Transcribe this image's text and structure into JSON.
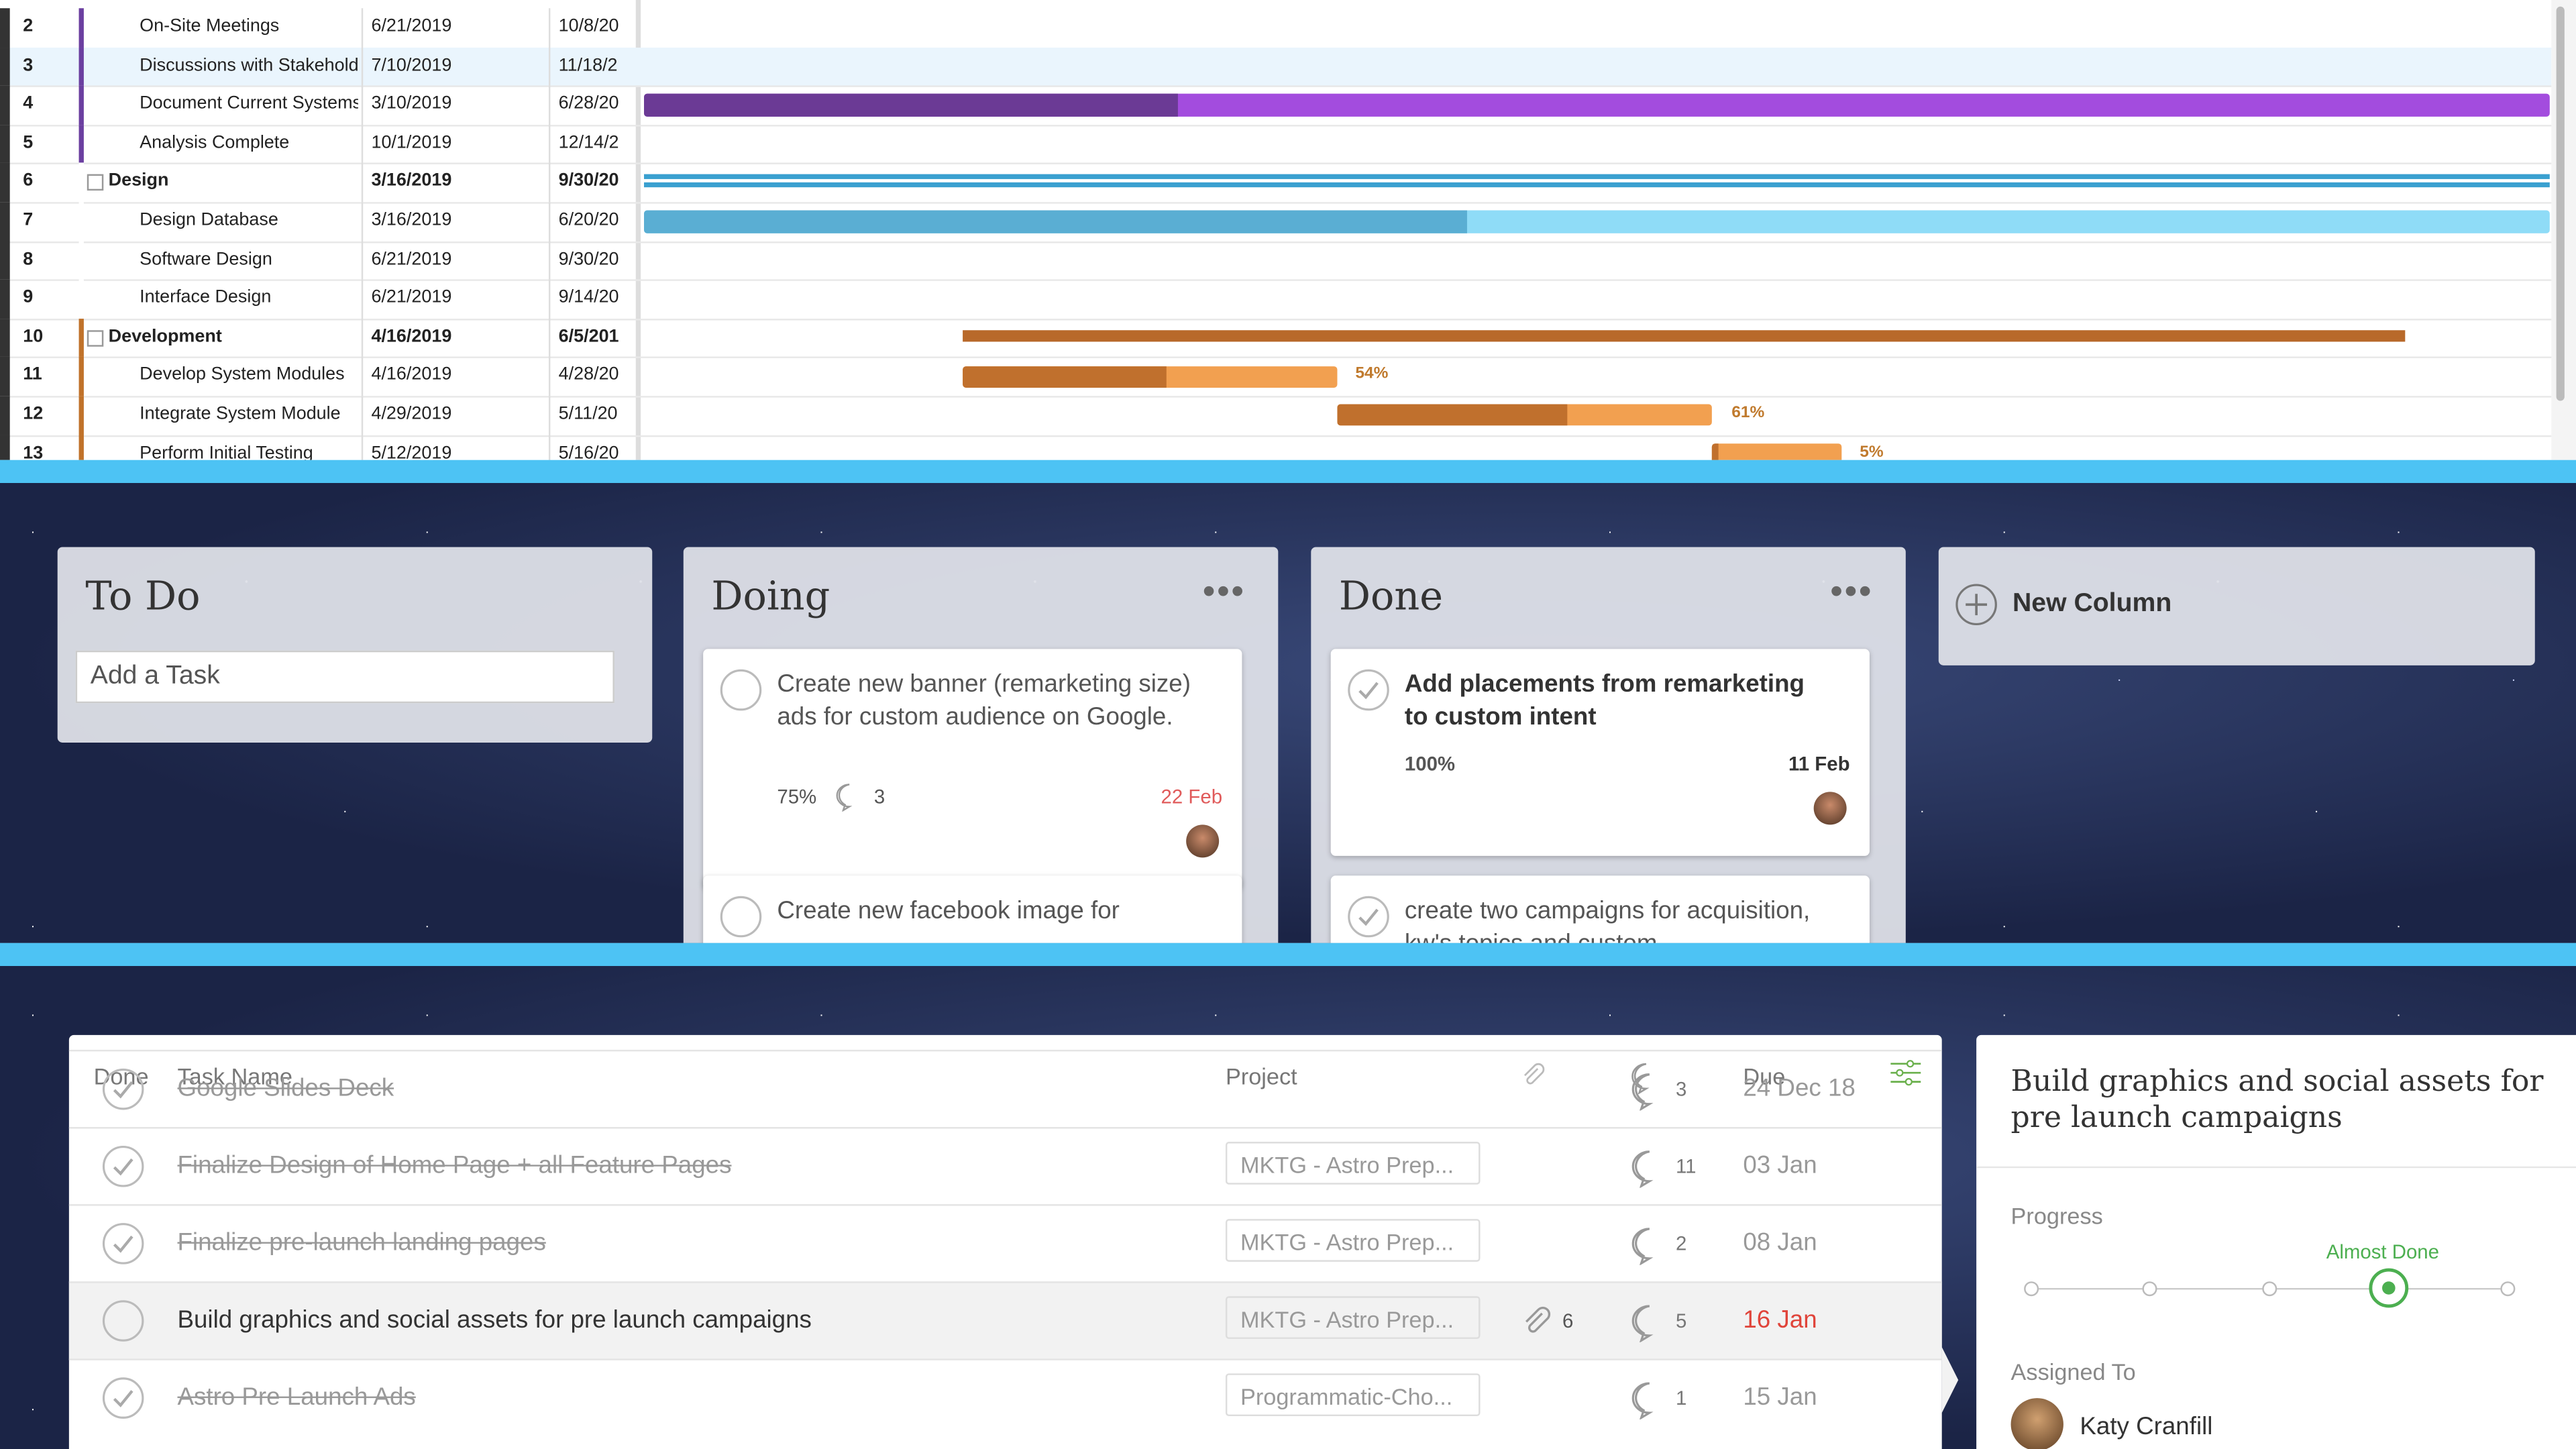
{
  "gantt": {
    "rows": [
      {
        "id": 2,
        "name": "On-Site Meetings",
        "start": "6/21/2019",
        "end": "10/8/20",
        "bold": false,
        "color": "#6b3fa0"
      },
      {
        "id": 3,
        "name": "Discussions with Stakeholders",
        "start": "7/10/2019",
        "end": "11/18/2",
        "bold": false,
        "color": "#6b3fa0"
      },
      {
        "id": 4,
        "name": "Document Current Systems",
        "start": "3/10/2019",
        "end": "6/28/20",
        "bold": false,
        "color": "#6b3fa0"
      },
      {
        "id": 5,
        "name": "Analysis Complete",
        "start": "10/1/2019",
        "end": "12/14/2",
        "bold": false,
        "color": "#6b3fa0"
      },
      {
        "id": 6,
        "name": "Design",
        "start": "3/16/2019",
        "end": "9/30/20",
        "bold": true,
        "color": "#ffffff"
      },
      {
        "id": 7,
        "name": "Design Database",
        "start": "3/16/2019",
        "end": "6/20/20",
        "bold": false,
        "color": "#ffffff"
      },
      {
        "id": 8,
        "name": "Software Design",
        "start": "6/21/2019",
        "end": "9/30/20",
        "bold": false,
        "color": "#ffffff"
      },
      {
        "id": 9,
        "name": "Interface Design",
        "start": "6/21/2019",
        "end": "9/14/20",
        "bold": false,
        "color": "#ffffff"
      },
      {
        "id": 10,
        "name": "Development",
        "start": "4/16/2019",
        "end": "6/5/201",
        "bold": true,
        "color": "#c0722a"
      },
      {
        "id": 11,
        "name": "Develop System Modules",
        "start": "4/16/2019",
        "end": "4/28/20",
        "bold": false,
        "color": "#c0722a"
      },
      {
        "id": 12,
        "name": "Integrate System Module",
        "start": "4/29/2019",
        "end": "5/11/20",
        "bold": false,
        "color": "#c0722a"
      },
      {
        "id": 13,
        "name": "Perform Initial Testing",
        "start": "5/12/2019",
        "end": "5/16/20",
        "bold": false,
        "color": "#c0722a"
      }
    ],
    "bar_labels": [
      "54%",
      "61%",
      "5%"
    ]
  },
  "board": {
    "columns": [
      {
        "title": "To Do",
        "input": "Add a Task"
      },
      {
        "title": "Doing",
        "cards": [
          {
            "text": "Create new banner (remarketing size) ads for custom audience on Google.",
            "progress": "75%",
            "comments": 3,
            "due": "22 Feb"
          },
          {
            "text": "Create new facebook image for"
          }
        ]
      },
      {
        "title": "Done",
        "cards": [
          {
            "text": "Add placements from remarketing to custom intent",
            "progress": "100%",
            "due": "11 Feb"
          },
          {
            "text": "create two campaigns for acquisition, kw's topics and custom"
          }
        ]
      }
    ],
    "new_column": "New Column"
  },
  "tasks": {
    "headers": [
      "Done",
      "Task Name",
      "Project",
      "Due"
    ],
    "rows": [
      {
        "name": "Google Slides Deck",
        "done": true,
        "comments": 3,
        "due": "24 Dec 18"
      },
      {
        "name": "Finalize Design of Home Page + all Feature Pages",
        "done": true,
        "project": "MKTG - Astro Prep...",
        "comments": 11,
        "due": "03 Jan"
      },
      {
        "name": "Finalize pre-launch landing pages",
        "done": true,
        "project": "MKTG - Astro Prep...",
        "comments": 2,
        "due": "08 Jan"
      },
      {
        "name": "Build graphics and social assets for pre launch campaigns",
        "done": false,
        "project": "MKTG - Astro Prep...",
        "attachments": 6,
        "comments": 5,
        "due": "16 Jan"
      },
      {
        "name": "Astro Pre Launch Ads",
        "done": true,
        "project": "Programmatic-Cho...",
        "comments": 1,
        "due": "15 Jan"
      }
    ]
  },
  "detail": {
    "title": "Build graphics and social assets for pre launch campaigns",
    "progress_label": "Progress",
    "stage": "Almost Done",
    "assigned_label": "Assigned To",
    "assignee": "Katy Cranfill"
  }
}
